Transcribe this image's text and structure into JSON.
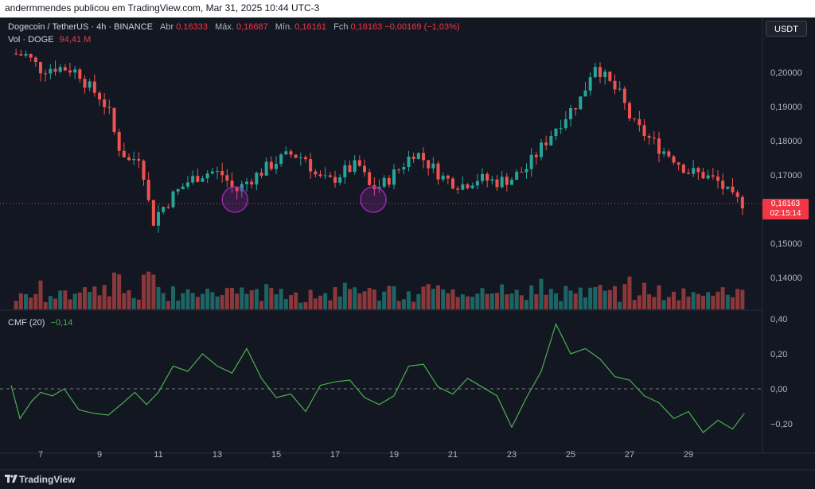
{
  "header": {
    "publisher_line": "andermmendes publicou em TradingView.com, Mar 31, 2025 10:44 UTC-3"
  },
  "legend": {
    "symbol": "Dogecoin / TetherUS · 4h · BINANCE",
    "open_label": "Abr",
    "open_value": "0,16333",
    "high_label": "Máx.",
    "high_value": "0,16687",
    "low_label": "Mín.",
    "low_value": "0,16161",
    "close_label": "Fch",
    "close_value": "0,16163",
    "change": "−0,00169 (−1,03%)"
  },
  "volume_legend": {
    "label": "Vol · DOGE",
    "value": "94,41 M"
  },
  "cmf_legend": {
    "label": "CMF (20)",
    "value": "−0,14"
  },
  "currency_button": "USDT",
  "last_price": {
    "price": "0,16163",
    "countdown": "02:15:14"
  },
  "price_axis_labels": [
    "0,20000",
    "0,19000",
    "0,18000",
    "0,17000",
    "0,15000",
    "0,14000"
  ],
  "cmf_axis_labels": [
    "0,40",
    "0,20",
    "0,00",
    "−0,20"
  ],
  "date_labels": [
    "7",
    "9",
    "11",
    "13",
    "15",
    "17",
    "19",
    "21",
    "23",
    "25",
    "27",
    "29"
  ],
  "brand": "TradingView",
  "colors": {
    "up": "#26a69a",
    "down": "#ef5350",
    "cmf": "#4caf50",
    "marker": "#9c27b0",
    "background": "#131722"
  },
  "chart_data": {
    "type": "candlestick",
    "interval": "4h",
    "x_axis_days": [
      6,
      31
    ],
    "price_range": [
      0.135,
      0.207
    ],
    "cmf_range": [
      -0.27,
      0.42
    ],
    "last_price": 0.16163,
    "price_anchors": [
      {
        "day": 6.0,
        "price": 0.2055
      },
      {
        "day": 6.5,
        "price": 0.205
      },
      {
        "day": 7.0,
        "price": 0.201
      },
      {
        "day": 7.5,
        "price": 0.2015
      },
      {
        "day": 8.0,
        "price": 0.201
      },
      {
        "day": 8.3,
        "price": 0.2
      },
      {
        "day": 8.6,
        "price": 0.196
      },
      {
        "day": 9.0,
        "price": 0.193
      },
      {
        "day": 9.3,
        "price": 0.189
      },
      {
        "day": 9.6,
        "price": 0.179
      },
      {
        "day": 10.0,
        "price": 0.174
      },
      {
        "day": 10.4,
        "price": 0.176
      },
      {
        "day": 10.6,
        "price": 0.165
      },
      {
        "day": 10.8,
        "price": 0.156
      },
      {
        "day": 11.0,
        "price": 0.159
      },
      {
        "day": 11.5,
        "price": 0.164
      },
      {
        "day": 12.0,
        "price": 0.168
      },
      {
        "day": 12.4,
        "price": 0.17
      },
      {
        "day": 12.8,
        "price": 0.171
      },
      {
        "day": 13.2,
        "price": 0.17
      },
      {
        "day": 13.6,
        "price": 0.165
      },
      {
        "day": 14.0,
        "price": 0.168
      },
      {
        "day": 14.5,
        "price": 0.171
      },
      {
        "day": 15.0,
        "price": 0.174
      },
      {
        "day": 15.5,
        "price": 0.176
      },
      {
        "day": 16.0,
        "price": 0.175
      },
      {
        "day": 16.4,
        "price": 0.169
      },
      {
        "day": 16.8,
        "price": 0.168
      },
      {
        "day": 17.3,
        "price": 0.171
      },
      {
        "day": 17.8,
        "price": 0.173
      },
      {
        "day": 18.2,
        "price": 0.166
      },
      {
        "day": 18.6,
        "price": 0.167
      },
      {
        "day": 19.2,
        "price": 0.172
      },
      {
        "day": 19.7,
        "price": 0.177
      },
      {
        "day": 20.2,
        "price": 0.173
      },
      {
        "day": 20.7,
        "price": 0.169
      },
      {
        "day": 21.3,
        "price": 0.167
      },
      {
        "day": 21.8,
        "price": 0.169
      },
      {
        "day": 22.5,
        "price": 0.168
      },
      {
        "day": 23.0,
        "price": 0.169
      },
      {
        "day": 23.5,
        "price": 0.172
      },
      {
        "day": 24.0,
        "price": 0.178
      },
      {
        "day": 24.5,
        "price": 0.184
      },
      {
        "day": 25.0,
        "price": 0.189
      },
      {
        "day": 25.4,
        "price": 0.193
      },
      {
        "day": 25.8,
        "price": 0.203
      },
      {
        "day": 26.2,
        "price": 0.198
      },
      {
        "day": 26.7,
        "price": 0.193
      },
      {
        "day": 27.1,
        "price": 0.185
      },
      {
        "day": 27.5,
        "price": 0.182
      },
      {
        "day": 28.0,
        "price": 0.178
      },
      {
        "day": 28.5,
        "price": 0.175
      },
      {
        "day": 29.0,
        "price": 0.171
      },
      {
        "day": 29.5,
        "price": 0.17
      },
      {
        "day": 30.0,
        "price": 0.168
      },
      {
        "day": 30.5,
        "price": 0.163
      },
      {
        "day": 30.9,
        "price": 0.1616
      }
    ],
    "cmf_anchors": [
      {
        "day": 6.0,
        "cmf": 0.02
      },
      {
        "day": 6.3,
        "cmf": -0.17
      },
      {
        "day": 6.7,
        "cmf": -0.07
      },
      {
        "day": 7.0,
        "cmf": -0.02
      },
      {
        "day": 7.4,
        "cmf": -0.04
      },
      {
        "day": 7.8,
        "cmf": 0.0
      },
      {
        "day": 8.3,
        "cmf": -0.12
      },
      {
        "day": 8.8,
        "cmf": -0.14
      },
      {
        "day": 9.3,
        "cmf": -0.15
      },
      {
        "day": 9.8,
        "cmf": -0.08
      },
      {
        "day": 10.2,
        "cmf": -0.02
      },
      {
        "day": 10.6,
        "cmf": -0.09
      },
      {
        "day": 11.0,
        "cmf": -0.02
      },
      {
        "day": 11.5,
        "cmf": 0.13
      },
      {
        "day": 12.0,
        "cmf": 0.1
      },
      {
        "day": 12.5,
        "cmf": 0.2
      },
      {
        "day": 13.0,
        "cmf": 0.13
      },
      {
        "day": 13.5,
        "cmf": 0.09
      },
      {
        "day": 14.0,
        "cmf": 0.23
      },
      {
        "day": 14.5,
        "cmf": 0.06
      },
      {
        "day": 15.0,
        "cmf": -0.05
      },
      {
        "day": 15.5,
        "cmf": -0.03
      },
      {
        "day": 16.0,
        "cmf": -0.13
      },
      {
        "day": 16.5,
        "cmf": 0.02
      },
      {
        "day": 17.0,
        "cmf": 0.04
      },
      {
        "day": 17.5,
        "cmf": 0.05
      },
      {
        "day": 18.0,
        "cmf": -0.05
      },
      {
        "day": 18.5,
        "cmf": -0.09
      },
      {
        "day": 19.0,
        "cmf": -0.04
      },
      {
        "day": 19.5,
        "cmf": 0.13
      },
      {
        "day": 20.0,
        "cmf": 0.14
      },
      {
        "day": 20.5,
        "cmf": 0.01
      },
      {
        "day": 21.0,
        "cmf": -0.03
      },
      {
        "day": 21.5,
        "cmf": 0.06
      },
      {
        "day": 22.0,
        "cmf": 0.01
      },
      {
        "day": 22.5,
        "cmf": -0.04
      },
      {
        "day": 23.0,
        "cmf": -0.22
      },
      {
        "day": 23.5,
        "cmf": -0.05
      },
      {
        "day": 24.0,
        "cmf": 0.1
      },
      {
        "day": 24.5,
        "cmf": 0.37
      },
      {
        "day": 25.0,
        "cmf": 0.2
      },
      {
        "day": 25.5,
        "cmf": 0.23
      },
      {
        "day": 26.0,
        "cmf": 0.17
      },
      {
        "day": 26.5,
        "cmf": 0.07
      },
      {
        "day": 27.0,
        "cmf": 0.05
      },
      {
        "day": 27.5,
        "cmf": -0.04
      },
      {
        "day": 28.0,
        "cmf": -0.08
      },
      {
        "day": 28.5,
        "cmf": -0.17
      },
      {
        "day": 29.0,
        "cmf": -0.13
      },
      {
        "day": 29.5,
        "cmf": -0.25
      },
      {
        "day": 30.0,
        "cmf": -0.18
      },
      {
        "day": 30.5,
        "cmf": -0.23
      },
      {
        "day": 30.9,
        "cmf": -0.14
      }
    ],
    "markers": [
      {
        "day": 13.6,
        "price": 0.1628
      },
      {
        "day": 18.3,
        "price": 0.1628
      }
    ]
  }
}
